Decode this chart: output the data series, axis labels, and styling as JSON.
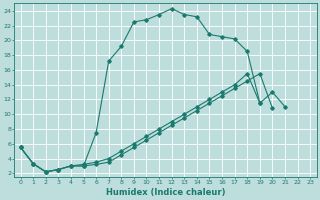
{
  "xlabel": "Humidex (Indice chaleur)",
  "ylabel": "",
  "background_color": "#bedddd",
  "grid_color": "#ffffff",
  "line_color": "#1a7a6e",
  "xlim": [
    -0.5,
    23.5
  ],
  "ylim": [
    1.5,
    25
  ],
  "xticks": [
    0,
    1,
    2,
    3,
    4,
    5,
    6,
    7,
    8,
    9,
    10,
    11,
    12,
    13,
    14,
    15,
    16,
    17,
    18,
    19,
    20,
    21,
    22,
    23
  ],
  "yticks": [
    2,
    4,
    6,
    8,
    10,
    12,
    14,
    16,
    18,
    20,
    22,
    24
  ],
  "line1_x": [
    0,
    1,
    2,
    3,
    4,
    5,
    6,
    7,
    8,
    9,
    10,
    11,
    12,
    13,
    14,
    15,
    16,
    17,
    18,
    19,
    20,
    21
  ],
  "line1_y": [
    5.5,
    3.3,
    2.2,
    2.5,
    3.0,
    3.0,
    7.5,
    17.2,
    19.2,
    22.5,
    22.8,
    23.5,
    24.3,
    23.5,
    23.2,
    20.8,
    20.5,
    20.2,
    18.5,
    11.5,
    13.0,
    11.0
  ],
  "line2_x": [
    0,
    1,
    2,
    3,
    4,
    5,
    6,
    7,
    8,
    9,
    10,
    11,
    12,
    13,
    14,
    15,
    16,
    17,
    18,
    19,
    20
  ],
  "line2_y": [
    5.5,
    3.3,
    2.2,
    2.5,
    3.0,
    3.0,
    3.2,
    3.5,
    4.5,
    5.5,
    6.5,
    7.5,
    8.5,
    9.5,
    10.5,
    11.5,
    12.5,
    13.5,
    14.5,
    15.5,
    10.8
  ],
  "line3_x": [
    0,
    1,
    2,
    3,
    4,
    5,
    6,
    7,
    8,
    9,
    10,
    11,
    12,
    13,
    14,
    15,
    16,
    17,
    18,
    19
  ],
  "line3_y": [
    5.5,
    3.3,
    2.2,
    2.5,
    3.0,
    3.2,
    3.5,
    4.0,
    5.0,
    6.0,
    7.0,
    8.0,
    9.0,
    10.0,
    11.0,
    12.0,
    13.0,
    14.0,
    15.5,
    11.5
  ]
}
